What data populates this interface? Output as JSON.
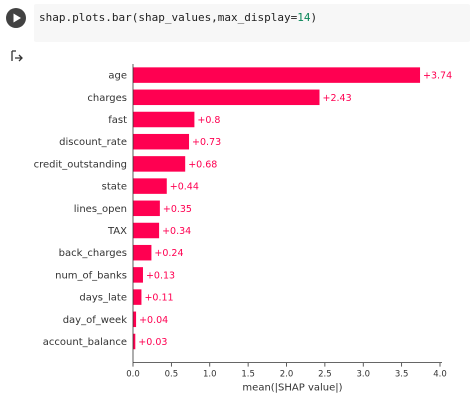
{
  "cell": {
    "code_prefix": "shap.plots.bar(shap_values,max_display=",
    "code_number": "14",
    "code_suffix": ")",
    "run_icon": "play-icon",
    "output_icon": "output-arrow-icon"
  },
  "colors": {
    "bar": "#ff0051",
    "bar_label": "#ff0051",
    "axis": "#333333"
  },
  "chart_data": {
    "type": "bar",
    "orientation": "horizontal",
    "categories": [
      "age",
      "charges",
      "fast",
      "discount_rate",
      "credit_outstanding",
      "state",
      "lines_open",
      "TAX",
      "back_charges",
      "num_of_banks",
      "days_late",
      "day_of_week",
      "account_balance"
    ],
    "values": [
      3.74,
      2.43,
      0.8,
      0.73,
      0.68,
      0.44,
      0.35,
      0.34,
      0.24,
      0.13,
      0.11,
      0.04,
      0.03
    ],
    "value_labels": [
      "+3.74",
      "+2.43",
      "+0.8",
      "+0.73",
      "+0.68",
      "+0.44",
      "+0.35",
      "+0.34",
      "+0.24",
      "+0.13",
      "+0.11",
      "+0.04",
      "+0.03"
    ],
    "xlabel": "mean(|SHAP value|)",
    "xlim": [
      0,
      4.0
    ],
    "xticks": [
      0.0,
      0.5,
      1.0,
      1.5,
      2.0,
      2.5,
      3.0,
      3.5,
      4.0
    ],
    "xtick_labels": [
      "0.0",
      "0.5",
      "1.0",
      "1.5",
      "2.0",
      "2.5",
      "3.0",
      "3.5",
      "4.0"
    ],
    "grid": false
  }
}
